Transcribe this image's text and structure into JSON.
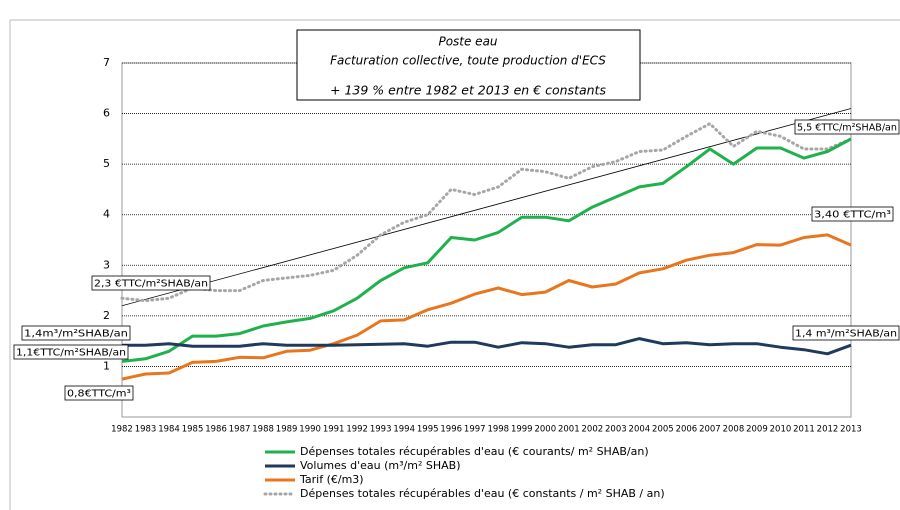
{
  "chart_data": {
    "type": "line",
    "title": [
      "Poste eau",
      "Facturation collective, toute production d'ECS",
      "+ 139 % entre 1982 et 2013 en € constants"
    ],
    "categories": [
      "1982",
      "1983",
      "1984",
      "1985",
      "1986",
      "1987",
      "1988",
      "1989",
      "1990",
      "1991",
      "1992",
      "1993",
      "1994",
      "1995",
      "1996",
      "1997",
      "1998",
      "1999",
      "2000",
      "2001",
      "2002",
      "2003",
      "2004",
      "2005",
      "2006",
      "2007",
      "2008",
      "2009",
      "2010",
      "2011",
      "2012",
      "2013"
    ],
    "ylim": [
      0,
      7
    ],
    "yticks": [
      1,
      2,
      3,
      4,
      5,
      6,
      7
    ],
    "grid": true,
    "series": [
      {
        "name": "Dépenses totales récupérables d'eau (€ courants/ m² SHAB/an)",
        "color": "#1fb14c",
        "dash": false,
        "values": [
          1.1,
          1.15,
          1.3,
          1.6,
          1.6,
          1.65,
          1.8,
          1.88,
          1.95,
          2.1,
          2.35,
          2.7,
          2.95,
          3.05,
          3.55,
          3.5,
          3.65,
          3.95,
          3.95,
          3.88,
          4.15,
          4.35,
          4.55,
          4.62,
          4.95,
          5.3,
          5.0,
          5.32,
          5.32,
          5.12,
          5.25,
          5.5
        ]
      },
      {
        "name": "Volumes d'eau (m³/m² SHAB)",
        "color": "#1f3a5c",
        "dash": false,
        "values": [
          1.42,
          1.42,
          1.45,
          1.4,
          1.4,
          1.4,
          1.45,
          1.42,
          1.42,
          1.42,
          1.43,
          1.44,
          1.45,
          1.4,
          1.48,
          1.48,
          1.38,
          1.47,
          1.45,
          1.38,
          1.43,
          1.43,
          1.55,
          1.45,
          1.47,
          1.43,
          1.45,
          1.45,
          1.38,
          1.33,
          1.25,
          1.42
        ]
      },
      {
        "name": "Tarif (€/m3)",
        "color": "#e8761e",
        "dash": false,
        "values": [
          0.75,
          0.85,
          0.87,
          1.08,
          1.1,
          1.18,
          1.17,
          1.3,
          1.32,
          1.45,
          1.62,
          1.9,
          1.92,
          2.12,
          2.25,
          2.43,
          2.55,
          2.42,
          2.47,
          2.7,
          2.57,
          2.63,
          2.85,
          2.93,
          3.1,
          3.2,
          3.25,
          3.41,
          3.4,
          3.55,
          3.6,
          3.4
        ]
      },
      {
        "name": "Dépenses totales récupérables d'eau (€ constants / m² SHAB / an)",
        "color": "#a6a6a6",
        "dash": true,
        "values": [
          2.35,
          2.3,
          2.35,
          2.55,
          2.5,
          2.5,
          2.7,
          2.75,
          2.8,
          2.9,
          3.2,
          3.6,
          3.85,
          4.0,
          4.5,
          4.4,
          4.55,
          4.9,
          4.85,
          4.72,
          4.95,
          5.05,
          5.25,
          5.28,
          5.55,
          5.8,
          5.35,
          5.65,
          5.55,
          5.3,
          5.3,
          5.5
        ]
      }
    ],
    "trendline": {
      "start": 2.2,
      "end": 6.1,
      "color": "#000000"
    },
    "annotations": [
      "2,3 €TTC/m²SHAB/an",
      "1,4m³/m²SHAB/an",
      "1,1€TTC/m²SHAB/an",
      "0,8€TTC/m³",
      "5,5 €TTC/m²SHAB/an",
      "3,40 €TTC/m³",
      "1,4 m³/m²SHAB/an"
    ]
  }
}
